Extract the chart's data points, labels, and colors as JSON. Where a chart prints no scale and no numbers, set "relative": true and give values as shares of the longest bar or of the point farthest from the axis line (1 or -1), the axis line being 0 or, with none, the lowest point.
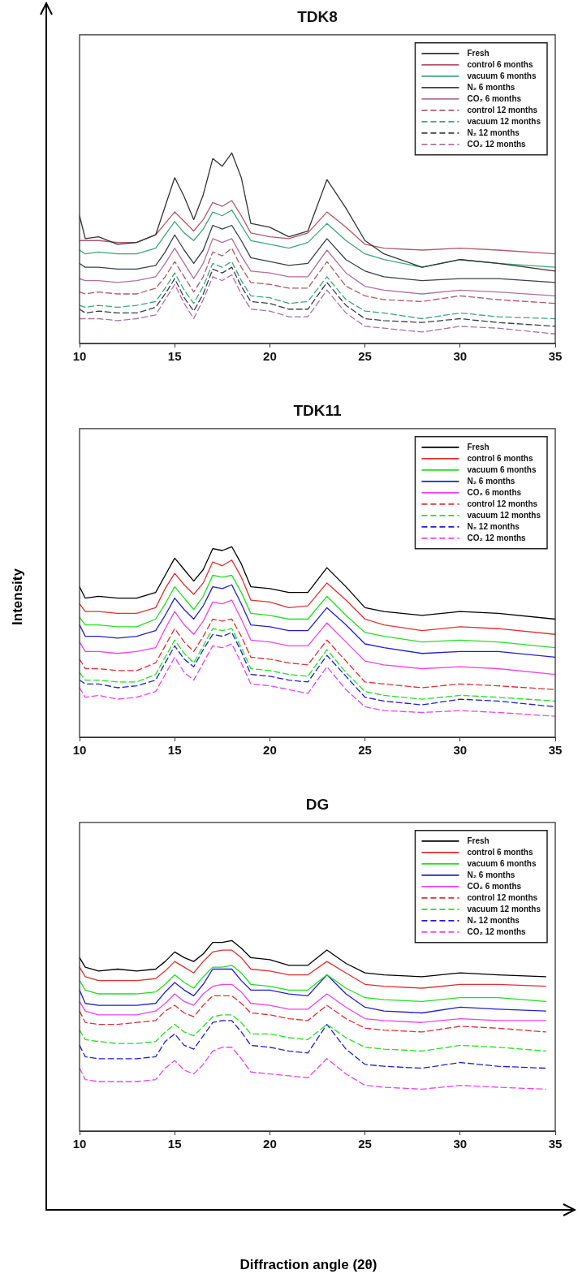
{
  "chart_data": [
    {
      "type": "line",
      "title": "TDK8",
      "relative": true,
      "legend": "top right",
      "xlim": [
        10,
        35
      ],
      "xticks": [
        10,
        15,
        20,
        25,
        30,
        35
      ],
      "x": [
        10,
        10.3,
        11,
        12,
        13,
        14,
        14.5,
        15,
        15.5,
        16,
        16.5,
        17,
        17.5,
        18,
        18.5,
        19,
        20,
        21,
        22,
        23,
        24,
        25,
        26,
        28,
        30,
        32,
        35
      ],
      "series": [
        {
          "name": "Fresh",
          "color": "#333333",
          "values": [
            0.67,
            0.55,
            0.56,
            0.52,
            0.53,
            0.57,
            0.72,
            0.87,
            0.77,
            0.65,
            0.78,
            0.97,
            0.93,
            1,
            0.87,
            0.63,
            0.61,
            0.56,
            0.59,
            0.86,
            0.71,
            0.54,
            0.47,
            0.4,
            0.44,
            0.42,
            0.38
          ]
        },
        {
          "name": "control 6 months",
          "color": "#b0596b",
          "values": [
            0.54,
            0.54,
            0.54,
            0.53,
            0.53,
            0.57,
            0.63,
            0.69,
            0.64,
            0.59,
            0.65,
            0.74,
            0.72,
            0.75,
            0.67,
            0.58,
            0.56,
            0.55,
            0.58,
            0.69,
            0.61,
            0.52,
            0.5,
            0.49,
            0.5,
            0.49,
            0.47
          ]
        },
        {
          "name": "vacuum 6 months",
          "color": "#3ca67a",
          "values": [
            0.49,
            0.47,
            0.48,
            0.47,
            0.47,
            0.5,
            0.57,
            0.64,
            0.58,
            0.54,
            0.6,
            0.69,
            0.67,
            0.7,
            0.62,
            0.54,
            0.52,
            0.5,
            0.53,
            0.63,
            0.54,
            0.47,
            0.44,
            0.4,
            0.44,
            0.42,
            0.4
          ]
        },
        {
          "name": "N₂ 6 months",
          "color": "#3a3f4a",
          "values": [
            0.42,
            0.4,
            0.4,
            0.39,
            0.39,
            0.41,
            0.48,
            0.57,
            0.49,
            0.42,
            0.49,
            0.62,
            0.6,
            0.62,
            0.54,
            0.45,
            0.43,
            0.41,
            0.42,
            0.55,
            0.44,
            0.38,
            0.35,
            0.33,
            0.34,
            0.34,
            0.32
          ]
        },
        {
          "name": "CO₂ 6 months",
          "color": "#b0709c",
          "values": [
            0.34,
            0.33,
            0.33,
            0.32,
            0.33,
            0.35,
            0.42,
            0.5,
            0.42,
            0.34,
            0.42,
            0.55,
            0.53,
            0.55,
            0.46,
            0.38,
            0.37,
            0.35,
            0.35,
            0.49,
            0.37,
            0.3,
            0.28,
            0.26,
            0.28,
            0.27,
            0.25
          ]
        },
        {
          "name": "control 12 months",
          "color": "#b0596b",
          "line_style": "dashed",
          "values": [
            0.27,
            0.26,
            0.27,
            0.26,
            0.26,
            0.29,
            0.35,
            0.43,
            0.35,
            0.27,
            0.35,
            0.48,
            0.46,
            0.5,
            0.4,
            0.32,
            0.31,
            0.29,
            0.29,
            0.43,
            0.3,
            0.25,
            0.23,
            0.22,
            0.25,
            0.23,
            0.21
          ]
        },
        {
          "name": "vacuum 12 months",
          "color": "#3ca67a",
          "line_style": "dashed",
          "values": [
            0.2,
            0.19,
            0.2,
            0.19,
            0.2,
            0.22,
            0.29,
            0.37,
            0.28,
            0.21,
            0.3,
            0.42,
            0.4,
            0.43,
            0.33,
            0.25,
            0.24,
            0.21,
            0.22,
            0.35,
            0.23,
            0.17,
            0.16,
            0.13,
            0.16,
            0.14,
            0.13
          ]
        },
        {
          "name": "N₂ 12 months",
          "color": "#3a3f4a",
          "line_style": "dashed",
          "values": [
            0.18,
            0.16,
            0.17,
            0.16,
            0.16,
            0.19,
            0.26,
            0.34,
            0.24,
            0.17,
            0.26,
            0.39,
            0.37,
            0.4,
            0.3,
            0.22,
            0.21,
            0.18,
            0.18,
            0.32,
            0.2,
            0.13,
            0.12,
            0.11,
            0.13,
            0.11,
            0.09
          ]
        },
        {
          "name": "CO₂ 12 months",
          "color": "#b0709c",
          "line_style": "dashed",
          "values": [
            0.13,
            0.13,
            0.13,
            0.12,
            0.13,
            0.15,
            0.23,
            0.31,
            0.21,
            0.13,
            0.23,
            0.35,
            0.33,
            0.36,
            0.26,
            0.18,
            0.17,
            0.14,
            0.14,
            0.28,
            0.16,
            0.09,
            0.08,
            0.06,
            0.09,
            0.08,
            0.05
          ]
        }
      ]
    },
    {
      "type": "line",
      "title": "TDK11",
      "ylabel": "Intensity",
      "relative": true,
      "legend": "top right",
      "xlim": [
        10,
        35
      ],
      "xticks": [
        10,
        15,
        20,
        25,
        30,
        35
      ],
      "x": [
        10,
        10.3,
        11,
        12,
        13,
        14,
        14.5,
        15,
        15.5,
        16,
        16.5,
        17,
        17.5,
        18,
        18.5,
        19,
        20,
        21,
        22,
        23,
        24,
        25,
        26,
        28,
        30,
        32,
        35
      ],
      "series": [
        {
          "name": "Fresh",
          "color": "#000000",
          "values": [
            0.79,
            0.73,
            0.74,
            0.73,
            0.73,
            0.76,
            0.85,
            0.94,
            0.88,
            0.82,
            0.88,
            0.99,
            0.98,
            1,
            0.91,
            0.79,
            0.78,
            0.76,
            0.76,
            0.89,
            0.79,
            0.68,
            0.66,
            0.64,
            0.66,
            0.65,
            0.62
          ]
        },
        {
          "name": "control 6 months",
          "color": "#e03030",
          "values": [
            0.7,
            0.66,
            0.66,
            0.65,
            0.65,
            0.68,
            0.78,
            0.86,
            0.8,
            0.75,
            0.81,
            0.92,
            0.9,
            0.93,
            0.84,
            0.72,
            0.71,
            0.68,
            0.69,
            0.81,
            0.72,
            0.62,
            0.59,
            0.56,
            0.58,
            0.57,
            0.54
          ]
        },
        {
          "name": "vacuum 6 months",
          "color": "#20e020",
          "values": [
            0.63,
            0.59,
            0.59,
            0.58,
            0.58,
            0.62,
            0.7,
            0.79,
            0.73,
            0.67,
            0.74,
            0.85,
            0.84,
            0.85,
            0.76,
            0.65,
            0.64,
            0.62,
            0.62,
            0.74,
            0.64,
            0.55,
            0.53,
            0.5,
            0.51,
            0.5,
            0.47
          ]
        },
        {
          "name": "N₂ 6 months",
          "color": "#2020d0",
          "values": [
            0.59,
            0.53,
            0.53,
            0.52,
            0.53,
            0.56,
            0.64,
            0.73,
            0.67,
            0.62,
            0.69,
            0.79,
            0.78,
            0.8,
            0.7,
            0.59,
            0.58,
            0.56,
            0.56,
            0.68,
            0.59,
            0.49,
            0.47,
            0.44,
            0.45,
            0.45,
            0.42
          ]
        },
        {
          "name": "CO₂ 6 months",
          "color": "#f040f0",
          "values": [
            0.5,
            0.45,
            0.45,
            0.44,
            0.45,
            0.47,
            0.57,
            0.66,
            0.59,
            0.54,
            0.61,
            0.71,
            0.7,
            0.72,
            0.62,
            0.51,
            0.5,
            0.48,
            0.48,
            0.6,
            0.5,
            0.4,
            0.38,
            0.36,
            0.37,
            0.36,
            0.33
          ]
        },
        {
          "name": "control 12 months",
          "color": "#e03030",
          "line_style": "dashed",
          "values": [
            0.41,
            0.36,
            0.36,
            0.35,
            0.35,
            0.39,
            0.48,
            0.57,
            0.5,
            0.45,
            0.53,
            0.62,
            0.61,
            0.62,
            0.53,
            0.42,
            0.41,
            0.39,
            0.38,
            0.51,
            0.4,
            0.29,
            0.28,
            0.26,
            0.28,
            0.27,
            0.25
          ]
        },
        {
          "name": "vacuum 12 months",
          "color": "#20e020",
          "line_style": "dashed",
          "values": [
            0.34,
            0.3,
            0.3,
            0.29,
            0.29,
            0.33,
            0.42,
            0.51,
            0.44,
            0.39,
            0.48,
            0.57,
            0.56,
            0.57,
            0.47,
            0.36,
            0.35,
            0.33,
            0.32,
            0.46,
            0.34,
            0.24,
            0.22,
            0.2,
            0.22,
            0.21,
            0.19
          ]
        },
        {
          "name": "N₂ 12 months",
          "color": "#2020d0",
          "line_style": "dashed",
          "values": [
            0.3,
            0.28,
            0.28,
            0.26,
            0.27,
            0.3,
            0.39,
            0.48,
            0.41,
            0.37,
            0.46,
            0.54,
            0.53,
            0.55,
            0.45,
            0.33,
            0.32,
            0.3,
            0.29,
            0.43,
            0.32,
            0.21,
            0.19,
            0.17,
            0.2,
            0.19,
            0.16
          ]
        },
        {
          "name": "CO₂ 12 months",
          "color": "#f040f0",
          "line_style": "dashed",
          "values": [
            0.26,
            0.21,
            0.22,
            0.2,
            0.21,
            0.24,
            0.33,
            0.42,
            0.34,
            0.3,
            0.39,
            0.48,
            0.47,
            0.49,
            0.39,
            0.28,
            0.27,
            0.25,
            0.23,
            0.37,
            0.25,
            0.16,
            0.14,
            0.13,
            0.14,
            0.13,
            0.11
          ]
        }
      ]
    },
    {
      "type": "line",
      "title": "DG",
      "xlabel": "Diffraction angle (2θ)",
      "relative": true,
      "legend": "top right",
      "xlim": [
        10,
        35
      ],
      "xticks": [
        10,
        15,
        20,
        25,
        30,
        35
      ],
      "x": [
        10,
        10.3,
        11,
        12,
        13,
        14,
        14.5,
        15,
        15.5,
        16,
        16.5,
        17,
        17.5,
        18,
        18.5,
        19,
        20,
        21,
        22,
        23,
        24,
        25,
        26,
        28,
        30,
        32,
        34.5
      ],
      "series": [
        {
          "name": "Fresh",
          "color": "#000000",
          "values": [
            0.91,
            0.86,
            0.84,
            0.85,
            0.84,
            0.85,
            0.89,
            0.94,
            0.91,
            0.89,
            0.93,
            0.99,
            0.99,
            1,
            0.96,
            0.91,
            0.9,
            0.87,
            0.87,
            0.95,
            0.88,
            0.83,
            0.82,
            0.81,
            0.83,
            0.82,
            0.81
          ]
        },
        {
          "name": "control 6 months",
          "color": "#e03030",
          "values": [
            0.86,
            0.81,
            0.79,
            0.79,
            0.79,
            0.8,
            0.84,
            0.89,
            0.86,
            0.83,
            0.89,
            0.94,
            0.95,
            0.95,
            0.91,
            0.85,
            0.84,
            0.82,
            0.82,
            0.89,
            0.83,
            0.77,
            0.76,
            0.75,
            0.77,
            0.77,
            0.76
          ]
        },
        {
          "name": "vacuum 6 months",
          "color": "#20e020",
          "values": [
            0.79,
            0.74,
            0.72,
            0.72,
            0.72,
            0.73,
            0.77,
            0.82,
            0.78,
            0.75,
            0.81,
            0.86,
            0.86,
            0.87,
            0.83,
            0.77,
            0.76,
            0.74,
            0.74,
            0.82,
            0.75,
            0.7,
            0.69,
            0.68,
            0.7,
            0.7,
            0.68
          ]
        },
        {
          "name": "N₂ 6 months",
          "color": "#2020d0",
          "values": [
            0.74,
            0.67,
            0.66,
            0.66,
            0.66,
            0.67,
            0.73,
            0.78,
            0.74,
            0.71,
            0.77,
            0.85,
            0.85,
            0.85,
            0.79,
            0.74,
            0.74,
            0.72,
            0.71,
            0.82,
            0.72,
            0.65,
            0.63,
            0.62,
            0.65,
            0.64,
            0.63
          ]
        },
        {
          "name": "CO₂ 6 months",
          "color": "#f040f0",
          "values": [
            0.68,
            0.63,
            0.61,
            0.61,
            0.61,
            0.63,
            0.67,
            0.72,
            0.68,
            0.66,
            0.72,
            0.76,
            0.77,
            0.77,
            0.73,
            0.67,
            0.66,
            0.64,
            0.64,
            0.72,
            0.65,
            0.59,
            0.58,
            0.57,
            0.59,
            0.58,
            0.58
          ]
        },
        {
          "name": "control 12 months",
          "color": "#e03030",
          "line_style": "dashed",
          "values": [
            0.63,
            0.57,
            0.56,
            0.56,
            0.57,
            0.58,
            0.63,
            0.66,
            0.62,
            0.6,
            0.66,
            0.71,
            0.71,
            0.71,
            0.67,
            0.62,
            0.61,
            0.59,
            0.58,
            0.66,
            0.59,
            0.54,
            0.53,
            0.52,
            0.55,
            0.54,
            0.52
          ]
        },
        {
          "name": "vacuum 12 months",
          "color": "#20e020",
          "line_style": "dashed",
          "values": [
            0.53,
            0.48,
            0.47,
            0.46,
            0.46,
            0.47,
            0.52,
            0.56,
            0.52,
            0.5,
            0.55,
            0.6,
            0.61,
            0.61,
            0.57,
            0.51,
            0.51,
            0.49,
            0.48,
            0.56,
            0.49,
            0.44,
            0.43,
            0.42,
            0.45,
            0.44,
            0.42
          ]
        },
        {
          "name": "N₂ 12 months",
          "color": "#2020d0",
          "line_style": "dashed",
          "values": [
            0.45,
            0.39,
            0.38,
            0.38,
            0.38,
            0.39,
            0.47,
            0.51,
            0.45,
            0.43,
            0.5,
            0.57,
            0.58,
            0.58,
            0.52,
            0.45,
            0.44,
            0.42,
            0.41,
            0.56,
            0.43,
            0.35,
            0.34,
            0.33,
            0.36,
            0.34,
            0.33
          ]
        },
        {
          "name": "CO₂ 12 months",
          "color": "#f040f0",
          "line_style": "dashed",
          "values": [
            0.33,
            0.27,
            0.26,
            0.26,
            0.26,
            0.27,
            0.33,
            0.37,
            0.32,
            0.3,
            0.35,
            0.42,
            0.44,
            0.44,
            0.38,
            0.31,
            0.3,
            0.29,
            0.28,
            0.38,
            0.3,
            0.24,
            0.23,
            0.22,
            0.24,
            0.23,
            0.22
          ]
        }
      ]
    }
  ]
}
